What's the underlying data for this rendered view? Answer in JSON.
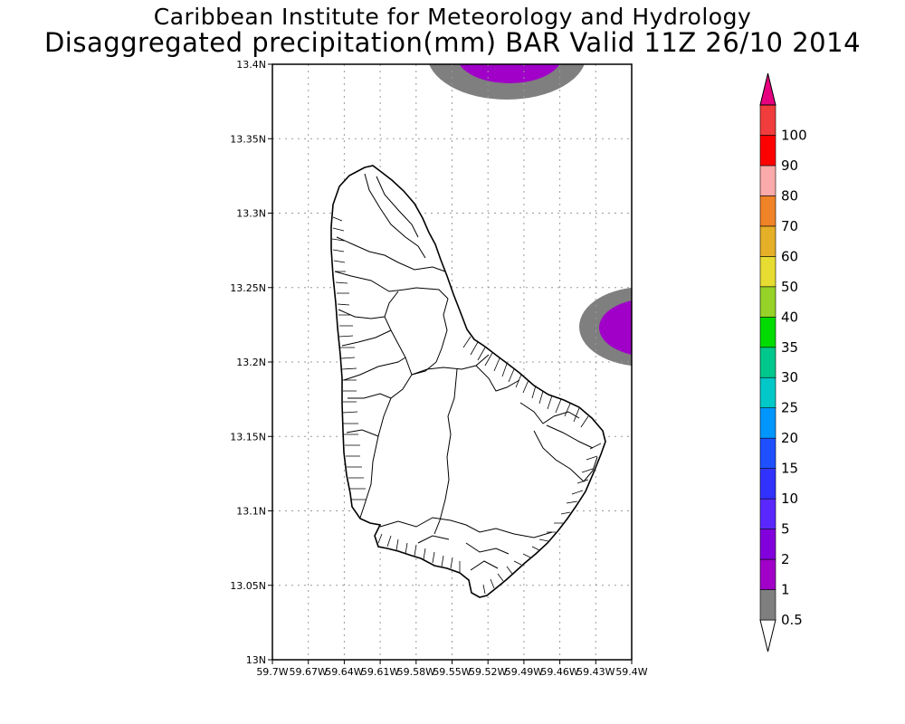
{
  "title": {
    "line1": "Caribbean Institute for Meteorology and Hydrology",
    "line2": "Disaggregated precipitation(mm) BAR Valid 11Z 26/10 2014"
  },
  "map": {
    "lat_range": [
      13.0,
      13.4
    ],
    "lon_range": [
      -59.7,
      -59.4
    ],
    "lat_ticks": [
      "13N",
      "13.05N",
      "13.1N",
      "13.15N",
      "13.2N",
      "13.25N",
      "13.3N",
      "13.35N",
      "13.4N"
    ],
    "lon_ticks": [
      "59.7W",
      "59.67W",
      "59.64W",
      "59.61W",
      "59.58W",
      "59.55W",
      "59.52W",
      "59.49W",
      "59.46W",
      "59.43W",
      "59.4W"
    ],
    "grid": true,
    "precip_areas": [
      {
        "name": "north-offshore-cell",
        "band_outer": "0.5",
        "band_inner": "1"
      },
      {
        "name": "east-offshore-cell",
        "band_outer": "0.5",
        "band_inner": "1"
      }
    ]
  },
  "legend": {
    "labels": [
      "0.5",
      "1",
      "2",
      "5",
      "10",
      "15",
      "20",
      "25",
      "30",
      "35",
      "40",
      "50",
      "60",
      "70",
      "80",
      "90",
      "100"
    ],
    "colors": [
      "#7f7f7f",
      "#a000c8",
      "#8200dc",
      "#5a28ff",
      "#3232ff",
      "#1e50ff",
      "#0096ff",
      "#00c8c8",
      "#00c88c",
      "#00dc00",
      "#96d228",
      "#e6dc32",
      "#e6af28",
      "#f08228",
      "#faaaaa",
      "#ff0000",
      "#f03c3c",
      "#e6007f"
    ]
  },
  "colors": {
    "frame": "#000000",
    "grid": "#9a9a9a",
    "land_outline": "#000000"
  }
}
